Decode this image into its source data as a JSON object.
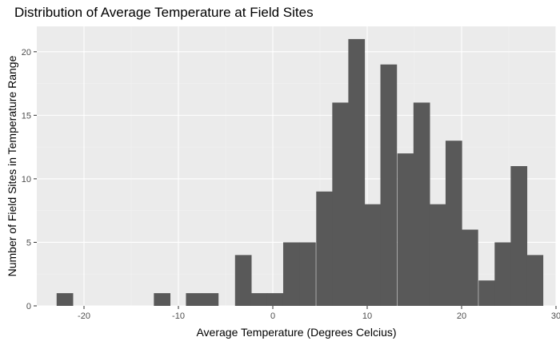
{
  "chart_data": {
    "type": "bar",
    "title": "Distribution of Average Temperature at Field Sites",
    "xlabel": "Average Temperature (Degrees Celcius)",
    "ylabel": "Number of Field Sites in Temperature Range",
    "xlim": [
      -25,
      30
    ],
    "ylim": [
      0,
      22
    ],
    "xticks": [
      -20,
      -10,
      0,
      10,
      20,
      30
    ],
    "yticks": [
      0,
      5,
      10,
      15,
      20
    ],
    "bin_width": 1.72,
    "bins": [
      {
        "x0": -22.9,
        "count": 1
      },
      {
        "x0": -12.6,
        "count": 1
      },
      {
        "x0": -9.2,
        "count": 1
      },
      {
        "x0": -7.5,
        "count": 1
      },
      {
        "x0": -4.0,
        "count": 4
      },
      {
        "x0": -2.3,
        "count": 1
      },
      {
        "x0": -0.6,
        "count": 1
      },
      {
        "x0": 1.1,
        "count": 5
      },
      {
        "x0": 2.8,
        "count": 5
      },
      {
        "x0": 4.6,
        "count": 9
      },
      {
        "x0": 6.3,
        "count": 16
      },
      {
        "x0": 8.0,
        "count": 21
      },
      {
        "x0": 9.7,
        "count": 8
      },
      {
        "x0": 11.4,
        "count": 19
      },
      {
        "x0": 13.2,
        "count": 12
      },
      {
        "x0": 14.9,
        "count": 16
      },
      {
        "x0": 16.6,
        "count": 8
      },
      {
        "x0": 18.3,
        "count": 13
      },
      {
        "x0": 20.0,
        "count": 6
      },
      {
        "x0": 21.8,
        "count": 2
      },
      {
        "x0": 23.5,
        "count": 5
      },
      {
        "x0": 25.2,
        "count": 11
      },
      {
        "x0": 26.9,
        "count": 4
      }
    ],
    "grid": true,
    "colors": {
      "bar": "#595959",
      "panel": "#ebebeb",
      "grid_major": "#ffffff",
      "grid_minor": "#f2f2f2"
    }
  }
}
